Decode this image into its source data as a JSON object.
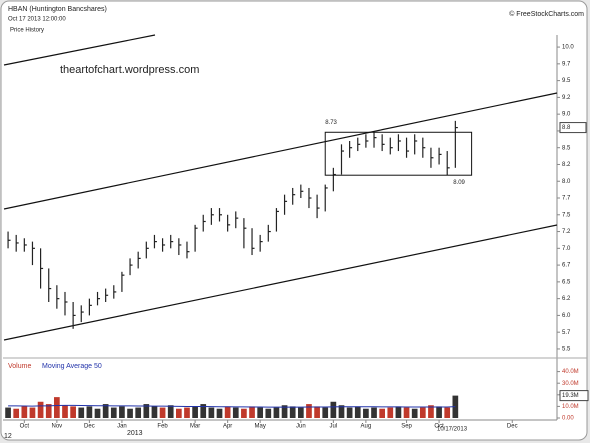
{
  "chart_data": {
    "type": "ohlc",
    "title": "HBAN (Huntington Bancshares)",
    "subtitle": "Oct 17 2013 12:00:00",
    "panel_label": "Price History",
    "credit": "© FreeStockCharts.com",
    "watermark": "theartofchart.wordpress.com",
    "year_label": "2013",
    "date_label": "10/17/2013",
    "corner_label": "12",
    "categories": [
      null,
      null,
      "Oct",
      null,
      null,
      null,
      "Nov",
      null,
      null,
      null,
      "Dec",
      null,
      null,
      null,
      "Jan",
      null,
      null,
      null,
      null,
      "Feb",
      null,
      null,
      null,
      "Mar",
      null,
      null,
      null,
      "Apr",
      null,
      null,
      null,
      "May",
      null,
      null,
      null,
      null,
      "Jun",
      null,
      null,
      null,
      "Jul",
      null,
      null,
      null,
      "Aug",
      null,
      null,
      null,
      null,
      "Sep",
      null,
      null,
      null,
      "Oct",
      null,
      null,
      null,
      null,
      null,
      null,
      null,
      null,
      "Dec",
      null,
      null,
      null,
      null,
      null
    ],
    "close": [
      7.12,
      7.08,
      7.05,
      7.0,
      6.7,
      6.4,
      6.25,
      6.2,
      6.0,
      6.05,
      6.15,
      6.25,
      6.3,
      6.35,
      6.6,
      6.75,
      6.85,
      7.0,
      7.1,
      7.05,
      7.1,
      7.05,
      6.95,
      7.3,
      7.4,
      7.5,
      7.5,
      7.35,
      7.45,
      7.3,
      7.0,
      7.1,
      7.25,
      7.55,
      7.7,
      7.8,
      7.85,
      7.75,
      7.6,
      7.9,
      8.1,
      8.45,
      8.5,
      8.55,
      8.6,
      8.65,
      8.55,
      8.5,
      8.6,
      8.45,
      8.6,
      8.5,
      8.35,
      8.4,
      8.2,
      8.8,
      null,
      null,
      null,
      null,
      null,
      null,
      null,
      null,
      null,
      null,
      null,
      null
    ],
    "high": [
      7.25,
      7.2,
      7.15,
      7.1,
      7.0,
      6.7,
      6.45,
      6.35,
      6.2,
      6.15,
      6.25,
      6.35,
      6.4,
      6.45,
      6.65,
      6.85,
      6.95,
      7.1,
      7.2,
      7.15,
      7.2,
      7.15,
      7.1,
      7.35,
      7.5,
      7.6,
      7.6,
      7.5,
      7.55,
      7.45,
      7.3,
      7.2,
      7.35,
      7.6,
      7.8,
      7.9,
      7.95,
      7.9,
      7.8,
      7.95,
      8.2,
      8.55,
      8.6,
      8.65,
      8.7,
      8.73,
      8.7,
      8.65,
      8.7,
      8.65,
      8.7,
      8.65,
      8.5,
      8.5,
      8.45,
      8.9,
      null,
      null,
      null,
      null,
      null,
      null,
      null,
      null,
      null,
      null,
      null,
      null
    ],
    "low": [
      7.0,
      6.95,
      6.95,
      6.75,
      6.4,
      6.2,
      6.1,
      6.0,
      5.8,
      5.9,
      6.0,
      6.15,
      6.2,
      6.25,
      6.35,
      6.6,
      6.7,
      6.85,
      7.0,
      6.95,
      7.0,
      6.9,
      6.85,
      6.95,
      7.25,
      7.35,
      7.4,
      7.25,
      7.3,
      7.0,
      6.9,
      6.95,
      7.1,
      7.25,
      7.5,
      7.65,
      7.75,
      7.6,
      7.45,
      7.55,
      7.85,
      8.1,
      8.35,
      8.45,
      8.5,
      8.5,
      8.45,
      8.4,
      8.45,
      8.35,
      8.4,
      8.35,
      8.2,
      8.25,
      8.09,
      8.2,
      null,
      null,
      null,
      null,
      null,
      null,
      null,
      null,
      null,
      null,
      null,
      null
    ],
    "color": "#222222",
    "ylim": [
      5.38,
      10.18
    ],
    "yticks": [
      {
        "value": 10,
        "label": "10.0"
      },
      {
        "value": 9.75,
        "label": "9.7"
      },
      9.5,
      {
        "value": 9.25,
        "label": "9.2"
      },
      {
        "value": 9,
        "label": "9.0"
      },
      {
        "value": 8.75,
        "label": "8.7"
      },
      8.5,
      {
        "value": 8.25,
        "label": "8.2"
      },
      {
        "value": 8,
        "label": "8.0"
      },
      {
        "value": 7.75,
        "label": "7.7"
      },
      7.5,
      {
        "value": 7.25,
        "label": "7.2"
      },
      {
        "value": 7,
        "label": "7.0"
      },
      {
        "value": 6.75,
        "label": "6.7"
      },
      6.5,
      {
        "value": 6.25,
        "label": "6.2"
      },
      {
        "value": 6,
        "label": "6.0"
      },
      {
        "value": 5.75,
        "label": "5.7"
      },
      5.5
    ],
    "last_price_label": "8.8",
    "box": {
      "top": 8.73,
      "bottom": 8.09
    },
    "volume": {
      "name": "Volume",
      "up_color": "#333333",
      "down_color": "#c0392b",
      "values": [
        9000000,
        8000000,
        10000000,
        9000000,
        14000000,
        12000000,
        18000000,
        11000000,
        10000000,
        9000000,
        10000000,
        8000000,
        12000000,
        9000000,
        10000000,
        8000000,
        9000000,
        12000000,
        10000000,
        9000000,
        11000000,
        8000000,
        9000000,
        10000000,
        12000000,
        9000000,
        8000000,
        10000000,
        9000000,
        8000000,
        10000000,
        9000000,
        8000000,
        9000000,
        11000000,
        10000000,
        9000000,
        12000000,
        10000000,
        9000000,
        14000000,
        11000000,
        9000000,
        10000000,
        8000000,
        9000000,
        8000000,
        9000000,
        10000000,
        9000000,
        8000000,
        9000000,
        11000000,
        10000000,
        9000000,
        19300000,
        null,
        null,
        null,
        null,
        null,
        null,
        null,
        null,
        null,
        null,
        null,
        null
      ],
      "value_labels": "19.3M"
    },
    "moving_average": {
      "name": "Moving Average 50",
      "color": "#2233aa",
      "values": [
        10500000,
        10400000,
        10300000,
        10200000,
        10400000,
        10500000,
        10800000,
        10900000,
        10900000,
        10800000,
        10700000,
        10600000,
        10600000,
        10500000,
        10500000,
        10400000,
        10300000,
        10300000,
        10200000,
        10200000,
        10100000,
        10000000,
        9900000,
        9900000,
        9900000,
        9800000,
        9700000,
        9700000,
        9600000,
        9600000,
        9500000,
        9500000,
        9400000,
        9400000,
        9400000,
        9400000,
        9400000,
        9500000,
        9500000,
        9500000,
        9600000,
        9700000,
        9700000,
        9700000,
        9700000,
        9700000,
        9600000,
        9600000,
        9600000,
        9500000,
        9500000,
        9500000,
        9500000,
        9500000,
        9500000,
        9800000,
        null,
        null,
        null,
        null,
        null,
        null,
        null,
        null,
        null,
        null,
        null,
        null
      ]
    },
    "y2lim": [
      0,
      50000000
    ],
    "y2ticks": [
      {
        "value": 40000000,
        "label": "40.0M"
      },
      {
        "value": 30000000,
        "label": "30.0M"
      },
      {
        "value": 20000000,
        "label": "20.0M"
      },
      {
        "value": 10000000,
        "label": "10.0M"
      },
      {
        "value": 0,
        "label": "0.00"
      }
    ]
  }
}
